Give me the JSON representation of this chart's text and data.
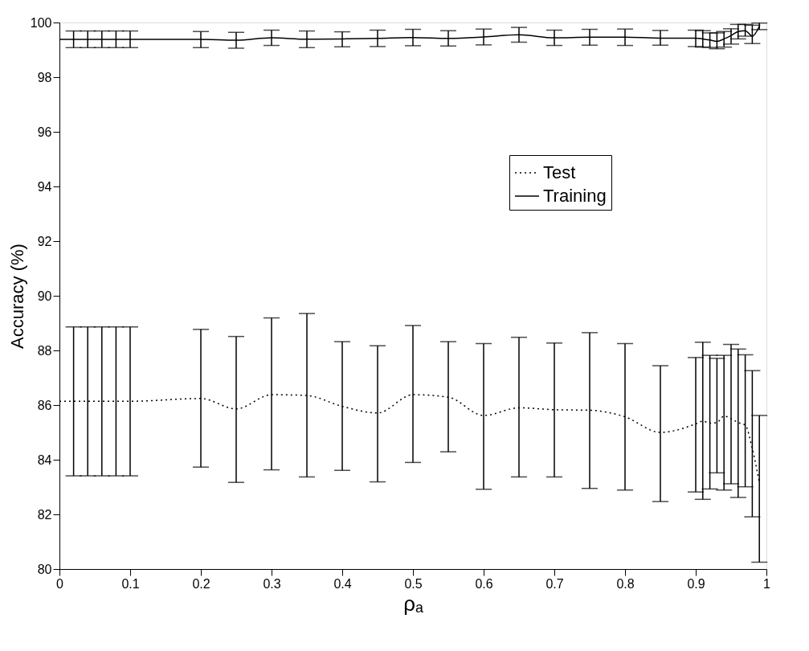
{
  "chart_data": {
    "type": "line",
    "xlabel": "ρₐ",
    "ylabel": "Accuracy (%)",
    "xlim": [
      0,
      1
    ],
    "xticks": [
      0,
      0.1,
      0.2,
      0.3,
      0.4,
      0.5,
      0.6,
      0.7,
      0.8,
      0.9,
      1
    ],
    "ylim": [
      80,
      100
    ],
    "yticks": [
      80,
      82,
      84,
      86,
      88,
      90,
      92,
      94,
      96,
      98,
      100
    ],
    "grid": false,
    "legend": "right",
    "series": [
      {
        "name": "Test",
        "color": "#000000",
        "line_style": "dotted",
        "x": [
          0,
          0.02,
          0.04,
          0.06,
          0.08,
          0.1,
          0.2,
          0.25,
          0.3,
          0.35,
          0.4,
          0.45,
          0.5,
          0.55,
          0.6,
          0.65,
          0.7,
          0.75,
          0.8,
          0.85,
          0.9,
          0.91,
          0.92,
          0.93,
          0.94,
          0.95,
          0.96,
          0.97,
          0.98,
          0.99
        ],
        "values": [
          86.14,
          86.14,
          86.14,
          86.14,
          86.14,
          86.14,
          86.24,
          85.86,
          86.38,
          86.35,
          85.95,
          85.71,
          86.38,
          86.29,
          85.62,
          85.9,
          85.83,
          85.81,
          85.57,
          85.0,
          85.31,
          85.41,
          85.34,
          85.36,
          85.6,
          85.5,
          85.36,
          85.27,
          84.41,
          83.17
        ],
        "errors": [
          null,
          [
            83.41,
            88.86
          ],
          [
            83.41,
            88.86
          ],
          [
            83.41,
            88.86
          ],
          [
            83.41,
            88.86
          ],
          [
            83.41,
            88.86
          ],
          [
            83.73,
            88.77
          ],
          [
            83.17,
            88.51
          ],
          [
            83.63,
            89.19
          ],
          [
            83.37,
            89.35
          ],
          [
            83.61,
            88.32
          ],
          [
            83.19,
            88.17
          ],
          [
            83.9,
            88.91
          ],
          [
            84.29,
            88.32
          ],
          [
            82.92,
            88.25
          ],
          [
            83.37,
            88.48
          ],
          [
            83.37,
            88.27
          ],
          [
            82.95,
            88.65
          ],
          [
            82.89,
            88.25
          ],
          [
            82.47,
            87.44
          ],
          [
            82.82,
            87.74
          ],
          [
            82.55,
            88.3
          ],
          [
            82.93,
            87.82
          ],
          [
            83.52,
            87.71
          ],
          [
            82.89,
            87.82
          ],
          [
            83.12,
            88.22
          ],
          [
            82.62,
            88.05
          ],
          [
            83.01,
            87.84
          ],
          [
            81.91,
            87.26
          ],
          [
            80.25,
            85.62
          ]
        ]
      },
      {
        "name": "Training",
        "color": "#000000",
        "line_style": "solid",
        "x": [
          0,
          0.02,
          0.04,
          0.06,
          0.08,
          0.1,
          0.2,
          0.25,
          0.3,
          0.35,
          0.4,
          0.45,
          0.5,
          0.55,
          0.6,
          0.65,
          0.7,
          0.75,
          0.8,
          0.85,
          0.9,
          0.91,
          0.92,
          0.93,
          0.94,
          0.95,
          0.96,
          0.97,
          0.98,
          0.99
        ],
        "values": [
          99.38,
          99.38,
          99.38,
          99.38,
          99.38,
          99.38,
          99.38,
          99.35,
          99.44,
          99.39,
          99.4,
          99.42,
          99.45,
          99.42,
          99.47,
          99.55,
          99.44,
          99.46,
          99.46,
          99.43,
          99.43,
          99.4,
          99.36,
          99.31,
          99.4,
          99.52,
          99.67,
          99.7,
          99.5,
          99.86
        ],
        "errors": [
          null,
          [
            99.08,
            99.69
          ],
          [
            99.08,
            99.69
          ],
          [
            99.08,
            99.69
          ],
          [
            99.08,
            99.69
          ],
          [
            99.08,
            99.69
          ],
          [
            99.08,
            99.67
          ],
          [
            99.06,
            99.64
          ],
          [
            99.16,
            99.72
          ],
          [
            99.08,
            99.69
          ],
          [
            99.11,
            99.66
          ],
          [
            99.12,
            99.72
          ],
          [
            99.15,
            99.75
          ],
          [
            99.14,
            99.7
          ],
          [
            99.18,
            99.76
          ],
          [
            99.28,
            99.82
          ],
          [
            99.16,
            99.72
          ],
          [
            99.17,
            99.75
          ],
          [
            99.16,
            99.76
          ],
          [
            99.17,
            99.71
          ],
          [
            99.12,
            99.72
          ],
          [
            99.1,
            99.7
          ],
          [
            99.09,
            99.62
          ],
          [
            99.04,
            99.62
          ],
          [
            99.1,
            99.67
          ],
          [
            99.21,
            99.77
          ],
          [
            99.4,
            99.93
          ],
          [
            99.5,
            99.93
          ],
          [
            99.23,
            99.9
          ],
          [
            99.74,
            99.98
          ]
        ]
      }
    ]
  }
}
